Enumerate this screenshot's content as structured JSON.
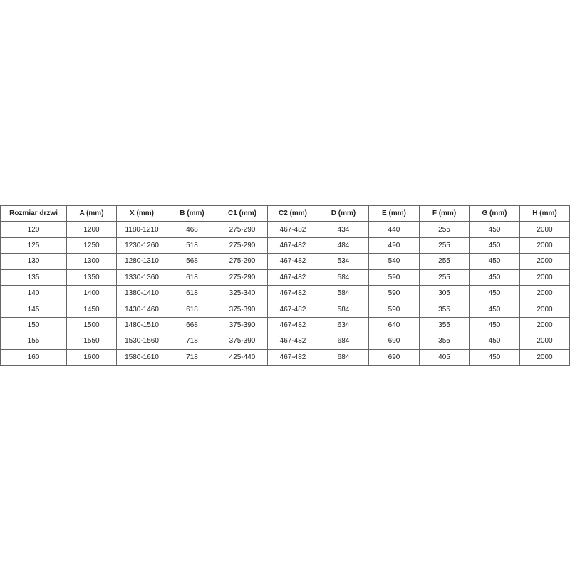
{
  "table": {
    "headers": [
      "Rozmiar drzwi",
      "A (mm)",
      "X (mm)",
      "B (mm)",
      "C1 (mm)",
      "C2 (mm)",
      "D (mm)",
      "E (mm)",
      "F (mm)",
      "G (mm)",
      "H (mm)"
    ],
    "rows": [
      [
        "120",
        "1200",
        "1180-1210",
        "468",
        "275-290",
        "467-482",
        "434",
        "440",
        "255",
        "450",
        "2000"
      ],
      [
        "125",
        "1250",
        "1230-1260",
        "518",
        "275-290",
        "467-482",
        "484",
        "490",
        "255",
        "450",
        "2000"
      ],
      [
        "130",
        "1300",
        "1280-1310",
        "568",
        "275-290",
        "467-482",
        "534",
        "540",
        "255",
        "450",
        "2000"
      ],
      [
        "135",
        "1350",
        "1330-1360",
        "618",
        "275-290",
        "467-482",
        "584",
        "590",
        "255",
        "450",
        "2000"
      ],
      [
        "140",
        "1400",
        "1380-1410",
        "618",
        "325-340",
        "467-482",
        "584",
        "590",
        "305",
        "450",
        "2000"
      ],
      [
        "145",
        "1450",
        "1430-1460",
        "618",
        "375-390",
        "467-482",
        "584",
        "590",
        "355",
        "450",
        "2000"
      ],
      [
        "150",
        "1500",
        "1480-1510",
        "668",
        "375-390",
        "467-482",
        "634",
        "640",
        "355",
        "450",
        "2000"
      ],
      [
        "155",
        "1550",
        "1530-1560",
        "718",
        "375-390",
        "467-482",
        "684",
        "690",
        "355",
        "450",
        "2000"
      ],
      [
        "160",
        "1600",
        "1580-1610",
        "718",
        "425-440",
        "467-482",
        "684",
        "690",
        "405",
        "450",
        "2000"
      ]
    ]
  }
}
